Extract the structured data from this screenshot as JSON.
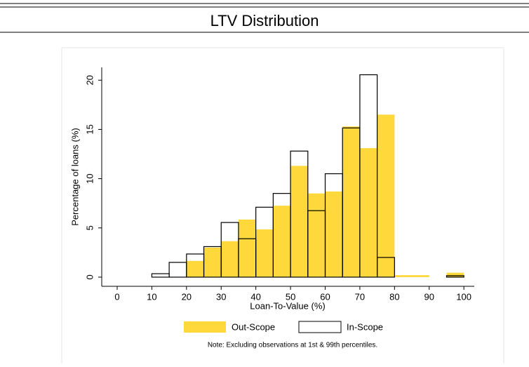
{
  "chart_data": {
    "type": "histogram",
    "title": "LTV Distribution",
    "xlabel": "Loan-To-Value (%)",
    "ylabel": "Percentage of loans (%)",
    "note": "Note: Excluding observations at 1st & 99th percentiles.",
    "bins": [
      0,
      5,
      10,
      15,
      20,
      25,
      30,
      35,
      40,
      45,
      50,
      55,
      60,
      65,
      70,
      75,
      80,
      85,
      90,
      95,
      100
    ],
    "series": [
      {
        "name": "Out-Scope",
        "color": "#ffd83b",
        "filled": true,
        "values": [
          0,
          0,
          0,
          0,
          1.65,
          3.0,
          3.65,
          5.85,
          4.85,
          7.25,
          11.3,
          8.5,
          8.7,
          15.3,
          13.1,
          16.5,
          0.2,
          0.2,
          0,
          0.45
        ]
      },
      {
        "name": "In-Scope",
        "color": "#000000",
        "filled": false,
        "values": [
          0,
          0,
          0.35,
          1.5,
          2.35,
          3.1,
          5.55,
          3.9,
          7.1,
          8.5,
          12.8,
          6.75,
          10.5,
          15.15,
          20.55,
          2.0,
          0,
          0,
          0,
          0.15
        ]
      }
    ],
    "xlim": [
      -4.45,
      103
    ],
    "ylim": [
      -0.93,
      21.3
    ],
    "xticks": [
      0,
      10,
      20,
      30,
      40,
      50,
      60,
      70,
      80,
      90,
      100
    ],
    "yticks": [
      0,
      5,
      10,
      15,
      20
    ]
  }
}
